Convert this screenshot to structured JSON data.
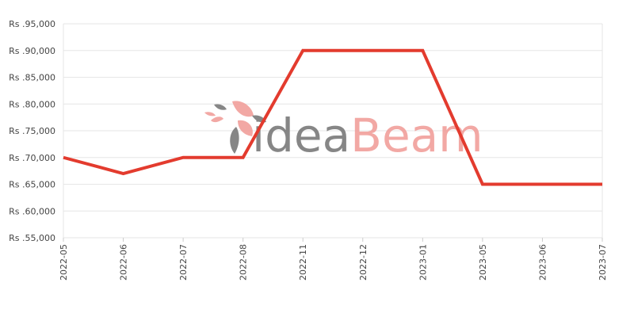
{
  "watermark": {
    "text_dark": "idea",
    "text_light": "Beam",
    "dark_color": "#7a7a7a",
    "light_color": "#f19f9b"
  },
  "chart_data": {
    "type": "line",
    "title": "",
    "xlabel": "",
    "ylabel": "",
    "categories": [
      "2022-05",
      "2022-06",
      "2022-07",
      "2022-08",
      "2022-11",
      "2022-12",
      "2023-01",
      "2023-05",
      "2023-06",
      "2023-07"
    ],
    "series": [
      {
        "values": [
          70000,
          67000,
          70000,
          70000,
          90000,
          90000,
          90000,
          65000,
          65000,
          65000
        ],
        "color": "#e33b2e"
      }
    ],
    "ylim": [
      55000,
      95000
    ],
    "yticks": [
      55000,
      60000,
      65000,
      70000,
      75000,
      80000,
      85000,
      90000,
      95000
    ],
    "ytick_labels": [
      "Rs .55,000",
      "Rs .60,000",
      "Rs .65,000",
      "Rs .70,000",
      "Rs .75,000",
      "Rs .80,000",
      "Rs .85,000",
      "Rs .90,000",
      "Rs .95,000"
    ],
    "grid": true,
    "grid_color": "#e6e6e6",
    "legend": "none"
  }
}
